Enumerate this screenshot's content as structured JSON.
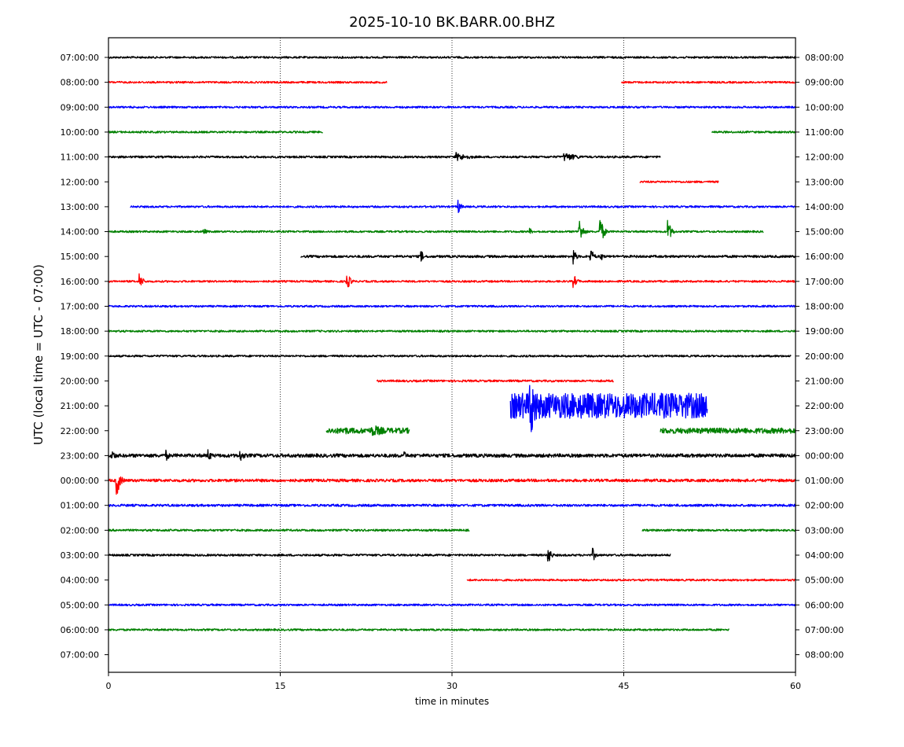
{
  "chart_data": {
    "type": "line",
    "title": "2025-10-10 BK.BARR.00.BHZ",
    "xlabel": "time in minutes",
    "ylabel": "UTC (local time = UTC - 07:00)",
    "xlim": [
      0,
      60
    ],
    "x_ticks": [
      0,
      15,
      30,
      45,
      60
    ],
    "grid_vertical": [
      15,
      30,
      45
    ],
    "colors": [
      "#000000",
      "#ff0000",
      "#0000ff",
      "#008000"
    ],
    "left_tick_labels": [
      "07:00:00",
      "08:00:00",
      "09:00:00",
      "10:00:00",
      "11:00:00",
      "12:00:00",
      "13:00:00",
      "14:00:00",
      "15:00:00",
      "16:00:00",
      "17:00:00",
      "18:00:00",
      "19:00:00",
      "20:00:00",
      "21:00:00",
      "22:00:00",
      "23:00:00",
      "00:00:00",
      "01:00:00",
      "02:00:00",
      "03:00:00",
      "04:00:00",
      "05:00:00",
      "06:00:00",
      "07:00:00"
    ],
    "right_tick_labels": [
      "08:00:00",
      "09:00:00",
      "10:00:00",
      "11:00:00",
      "12:00:00",
      "13:00:00",
      "14:00:00",
      "15:00:00",
      "16:00:00",
      "17:00:00",
      "18:00:00",
      "19:00:00",
      "20:00:00",
      "21:00:00",
      "22:00:00",
      "23:00:00",
      "00:00:00",
      "01:00:00",
      "02:00:00",
      "03:00:00",
      "04:00:00",
      "05:00:00",
      "06:00:00",
      "07:00:00",
      "08:00:00"
    ],
    "traces": [
      {
        "row": 0,
        "color": "#000000",
        "segments": [
          [
            0,
            60
          ]
        ],
        "amp": 1.2,
        "events": []
      },
      {
        "row": 1,
        "color": "#ff0000",
        "segments": [
          [
            0,
            24.3
          ],
          [
            44.8,
            60
          ]
        ],
        "amp": 1.2,
        "events": []
      },
      {
        "row": 2,
        "color": "#0000ff",
        "segments": [
          [
            0,
            60
          ]
        ],
        "amp": 1.2,
        "events": []
      },
      {
        "row": 3,
        "color": "#008000",
        "segments": [
          [
            0,
            18.7
          ],
          [
            52.7,
            60
          ]
        ],
        "amp": 1.2,
        "events": []
      },
      {
        "row": 4,
        "color": "#000000",
        "segments": [
          [
            0,
            48.2
          ]
        ],
        "amp": 1.3,
        "events": [
          [
            30.3,
            6,
            1.2
          ],
          [
            39.8,
            6,
            1.2
          ]
        ]
      },
      {
        "row": 5,
        "color": "#ff0000",
        "segments": [
          [
            46.4,
            53.3
          ]
        ],
        "amp": 1.2,
        "events": []
      },
      {
        "row": 6,
        "color": "#0000ff",
        "segments": [
          [
            1.9,
            60
          ]
        ],
        "amp": 1.2,
        "events": [
          [
            30.5,
            11,
            0.25
          ]
        ]
      },
      {
        "row": 7,
        "color": "#008000",
        "segments": [
          [
            0,
            57.2
          ]
        ],
        "amp": 1.2,
        "events": [
          [
            8.3,
            4,
            0.4
          ],
          [
            36.8,
            5,
            0.2
          ],
          [
            41.1,
            18,
            0.3
          ],
          [
            42.9,
            22,
            0.3
          ],
          [
            48.8,
            18,
            0.3
          ]
        ]
      },
      {
        "row": 8,
        "color": "#000000",
        "segments": [
          [
            16.8,
            60
          ]
        ],
        "amp": 1.5,
        "events": [
          [
            27.3,
            9,
            0.2
          ],
          [
            40.6,
            11,
            0.25
          ],
          [
            42.1,
            11,
            0.3
          ],
          [
            43.0,
            8,
            0.2
          ]
        ]
      },
      {
        "row": 9,
        "color": "#ff0000",
        "segments": [
          [
            0,
            60
          ]
        ],
        "amp": 1.2,
        "events": [
          [
            2.7,
            11,
            0.3
          ],
          [
            20.8,
            13,
            0.3
          ],
          [
            40.6,
            10,
            0.3
          ]
        ]
      },
      {
        "row": 10,
        "color": "#0000ff",
        "segments": [
          [
            0,
            60
          ]
        ],
        "amp": 1.2,
        "events": []
      },
      {
        "row": 11,
        "color": "#008000",
        "segments": [
          [
            0,
            60
          ]
        ],
        "amp": 1.2,
        "events": []
      },
      {
        "row": 12,
        "color": "#000000",
        "segments": [
          [
            0,
            59.6
          ]
        ],
        "amp": 1.2,
        "events": []
      },
      {
        "row": 13,
        "color": "#ff0000",
        "segments": [
          [
            23.4,
            44.1
          ]
        ],
        "amp": 1.3,
        "events": []
      },
      {
        "row": 14,
        "color": "#0000ff",
        "segments": [
          [
            35.1,
            52.3
          ]
        ],
        "amp": 16,
        "events": [
          [
            36.8,
            50,
            0.6
          ]
        ]
      },
      {
        "row": 15,
        "color": "#008000",
        "segments": [
          [
            19.0,
            26.3
          ],
          [
            48.2,
            60
          ]
        ],
        "amp": 3.5,
        "events": [
          [
            20.5,
            6,
            1.0
          ],
          [
            23.0,
            8,
            1.5
          ]
        ]
      },
      {
        "row": 16,
        "color": "#000000",
        "segments": [
          [
            0,
            60
          ]
        ],
        "amp": 2.2,
        "events": [
          [
            0.3,
            9,
            0.3
          ],
          [
            5.0,
            8,
            0.3
          ],
          [
            8.7,
            9,
            0.3
          ],
          [
            11.5,
            8,
            0.4
          ],
          [
            25.8,
            6,
            0.3
          ]
        ]
      },
      {
        "row": 17,
        "color": "#ff0000",
        "segments": [
          [
            0,
            60
          ]
        ],
        "amp": 1.8,
        "events": [
          [
            0.7,
            22,
            0.3
          ]
        ]
      },
      {
        "row": 18,
        "color": "#0000ff",
        "segments": [
          [
            0,
            60
          ]
        ],
        "amp": 1.5,
        "events": []
      },
      {
        "row": 19,
        "color": "#008000",
        "segments": [
          [
            0,
            31.5
          ],
          [
            46.6,
            60
          ]
        ],
        "amp": 1.3,
        "events": []
      },
      {
        "row": 20,
        "color": "#000000",
        "segments": [
          [
            0,
            49.1
          ]
        ],
        "amp": 1.3,
        "events": [
          [
            38.4,
            13,
            0.25
          ],
          [
            42.3,
            9,
            0.25
          ]
        ]
      },
      {
        "row": 21,
        "color": "#ff0000",
        "segments": [
          [
            31.3,
            60
          ]
        ],
        "amp": 1.2,
        "events": []
      },
      {
        "row": 22,
        "color": "#0000ff",
        "segments": [
          [
            0,
            60
          ]
        ],
        "amp": 1.2,
        "events": []
      },
      {
        "row": 23,
        "color": "#008000",
        "segments": [
          [
            0,
            54.2
          ]
        ],
        "amp": 1.2,
        "events": []
      }
    ]
  }
}
